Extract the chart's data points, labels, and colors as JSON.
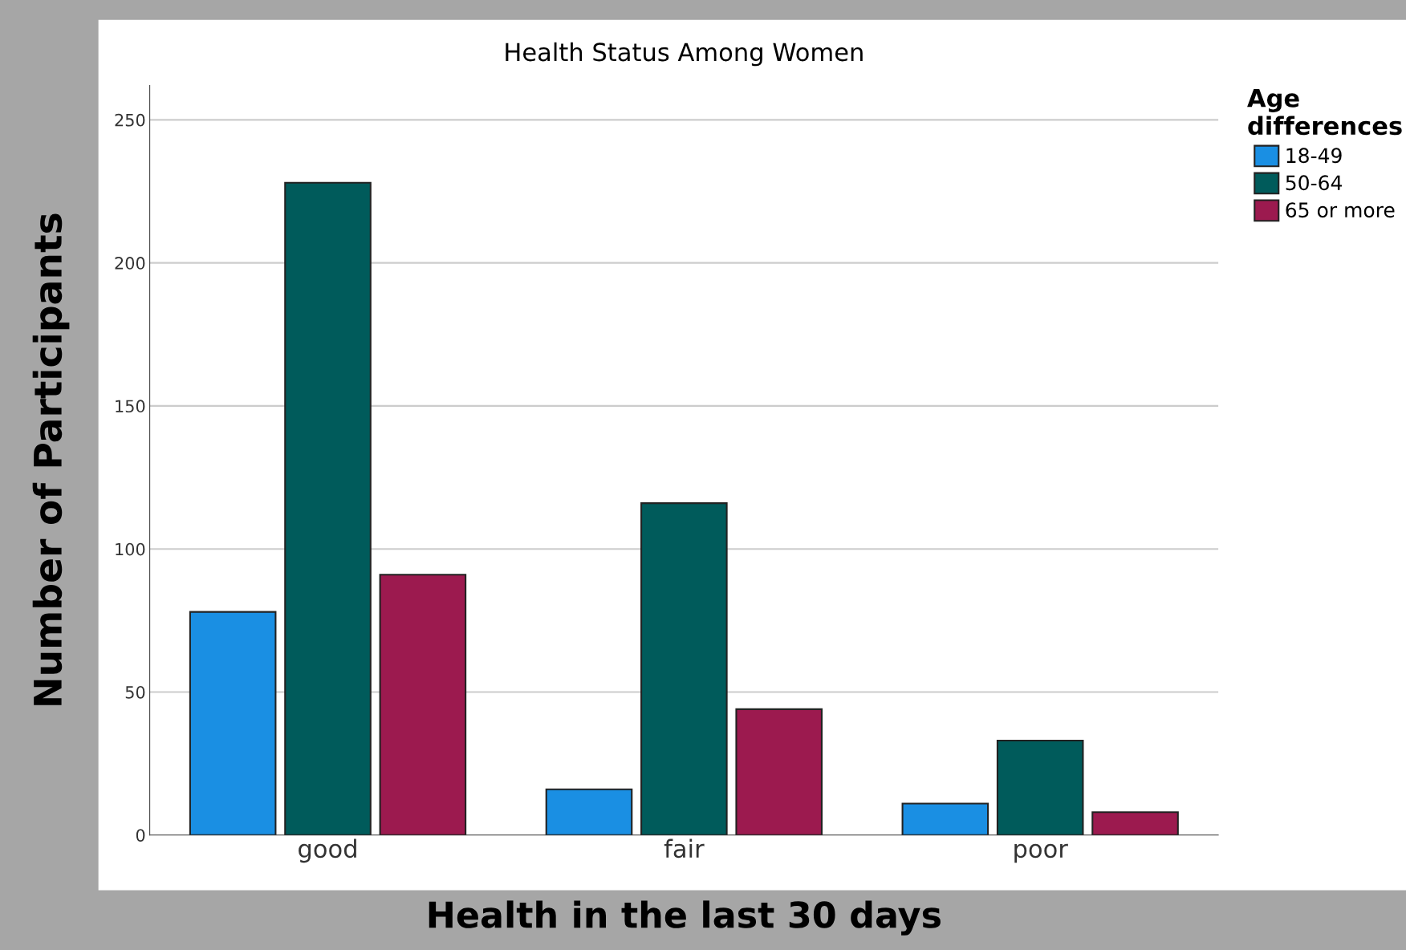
{
  "chart_data": {
    "type": "bar",
    "title": "Health Status Among Women",
    "xlabel": "Health in the last 30 days",
    "ylabel": "Number of Participants",
    "legend_title": "Age\ndifferences",
    "categories": [
      "good",
      "fair",
      "poor"
    ],
    "series": [
      {
        "name": "18-49",
        "color": "#1a8fe3",
        "values": [
          78,
          16,
          11
        ]
      },
      {
        "name": "50-64",
        "color": "#005b5b",
        "values": [
          228,
          116,
          33
        ]
      },
      {
        "name": "65 or more",
        "color": "#9c1a4f",
        "values": [
          91,
          44,
          8
        ]
      }
    ],
    "ylim": [
      0,
      262
    ],
    "yticks": [
      0,
      50,
      100,
      150,
      200,
      250
    ],
    "grid": "y",
    "legend": "right"
  }
}
